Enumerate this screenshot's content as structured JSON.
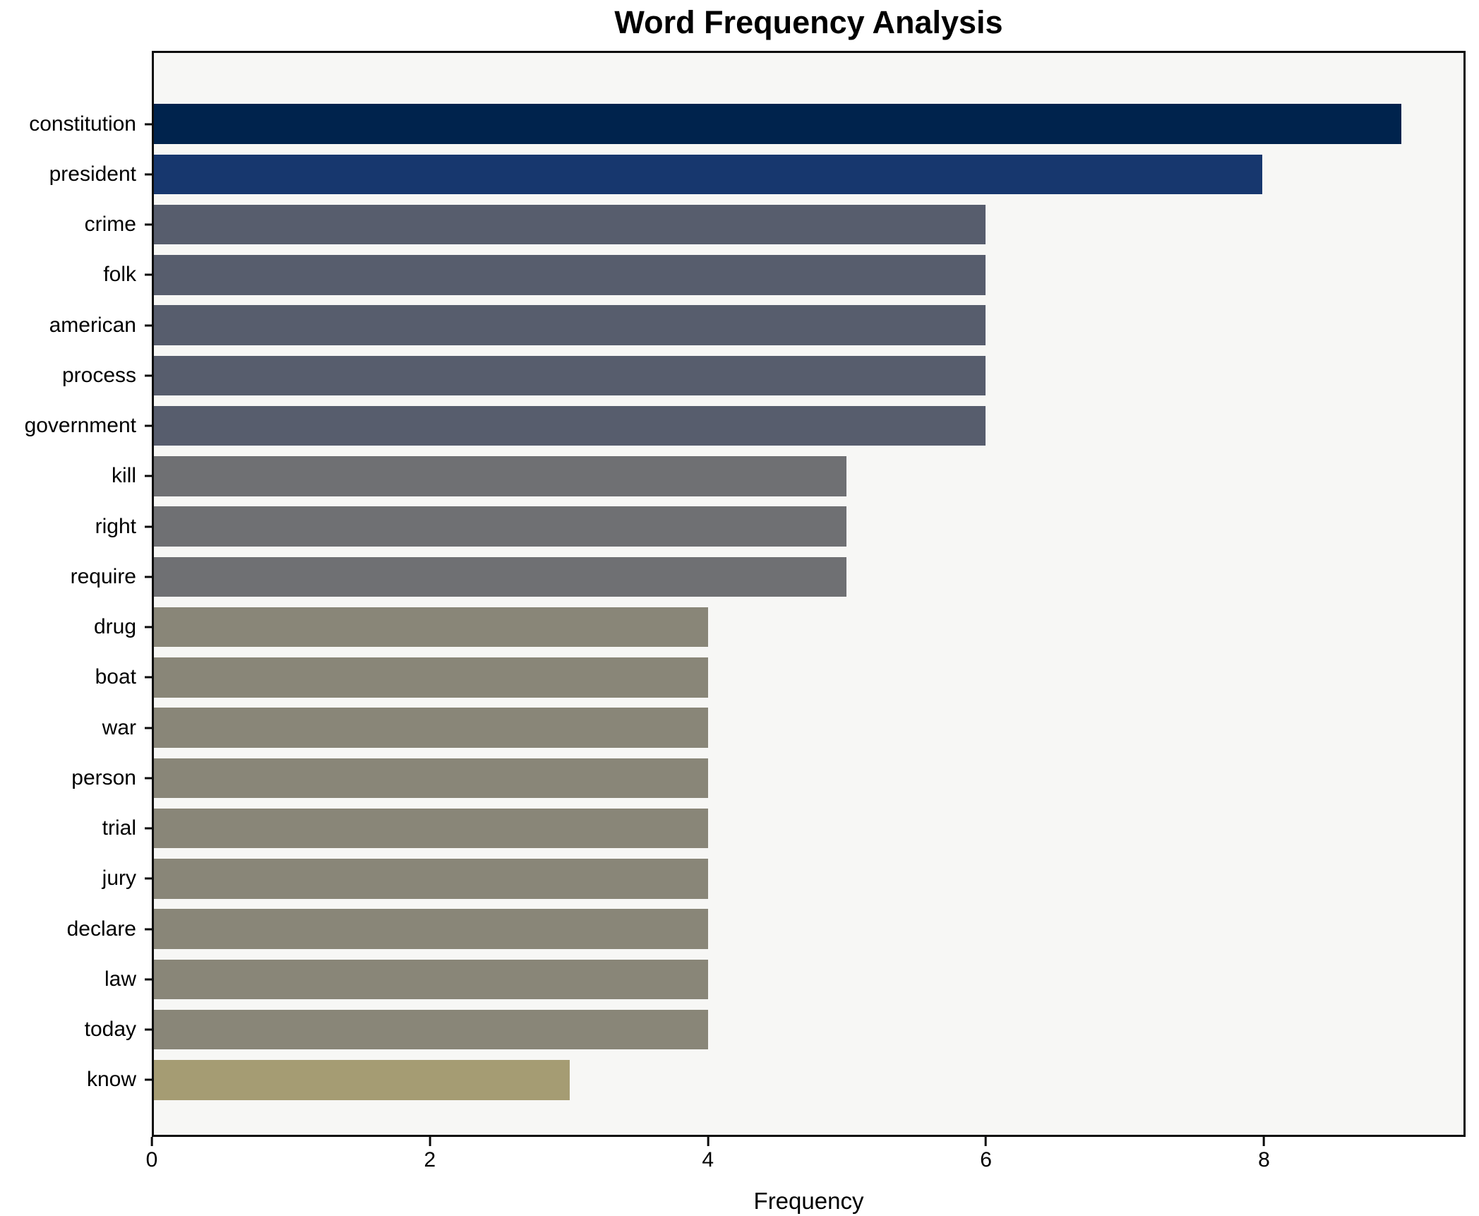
{
  "title": "Word Frequency Analysis",
  "chart_data": {
    "type": "bar",
    "orientation": "horizontal",
    "title": "Word Frequency Analysis",
    "xlabel": "Frequency",
    "ylabel": "",
    "xlim": [
      0,
      9.45
    ],
    "xticks": [
      0,
      2,
      4,
      6,
      8
    ],
    "grid": false,
    "legend": null,
    "categories": [
      "constitution",
      "president",
      "crime",
      "folk",
      "american",
      "process",
      "government",
      "kill",
      "right",
      "require",
      "drug",
      "boat",
      "war",
      "person",
      "trial",
      "jury",
      "declare",
      "law",
      "today",
      "know"
    ],
    "values": [
      9,
      8,
      6,
      6,
      6,
      6,
      6,
      5,
      5,
      5,
      4,
      4,
      4,
      4,
      4,
      4,
      4,
      4,
      4,
      3
    ],
    "bar_colors": [
      "#00234d",
      "#17376e",
      "#575d6d",
      "#575d6d",
      "#575d6d",
      "#575d6d",
      "#575d6d",
      "#6f7073",
      "#6f7073",
      "#6f7073",
      "#898678",
      "#898678",
      "#898678",
      "#898678",
      "#898678",
      "#898678",
      "#898678",
      "#898678",
      "#898678",
      "#a59c73"
    ]
  },
  "colors": {
    "figure_background": "#ffffff",
    "plot_background": "#f7f7f5",
    "spine": "#0c0c0c",
    "text": "#000000"
  }
}
